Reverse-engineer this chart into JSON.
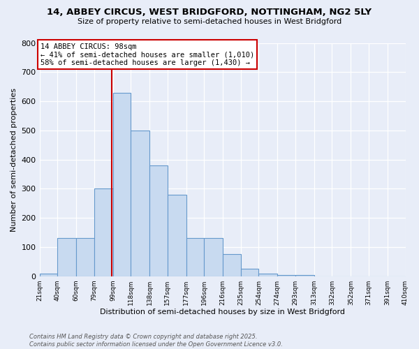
{
  "title1": "14, ABBEY CIRCUS, WEST BRIDGFORD, NOTTINGHAM, NG2 5LY",
  "title2": "Size of property relative to semi-detached houses in West Bridgford",
  "xlabel": "Distribution of semi-detached houses by size in West Bridgford",
  "ylabel": "Number of semi-detached properties",
  "bar_edges": [
    21,
    40,
    60,
    79,
    99,
    118,
    138,
    157,
    177,
    196,
    216,
    235,
    254,
    274,
    293,
    313,
    332,
    352,
    371,
    391,
    410
  ],
  "bar_heights": [
    10,
    130,
    130,
    300,
    630,
    500,
    380,
    280,
    130,
    130,
    75,
    25,
    10,
    5,
    5,
    0,
    0,
    0,
    0,
    0
  ],
  "bar_color": "#c8daf0",
  "bar_edge_color": "#6699cc",
  "vline_x": 98,
  "vline_color": "#cc0000",
  "annotation_title": "14 ABBEY CIRCUS: 98sqm",
  "annotation_line1": "← 41% of semi-detached houses are smaller (1,010)",
  "annotation_line2": "58% of semi-detached houses are larger (1,430) →",
  "annotation_box_facecolor": "#ffffff",
  "annotation_box_edgecolor": "#cc0000",
  "ylim": [
    0,
    800
  ],
  "yticks": [
    0,
    100,
    200,
    300,
    400,
    500,
    600,
    700,
    800
  ],
  "footnote1": "Contains HM Land Registry data © Crown copyright and database right 2025.",
  "footnote2": "Contains public sector information licensed under the Open Government Licence v3.0.",
  "fig_facecolor": "#e8edf8",
  "ax_facecolor": "#e8edf8"
}
